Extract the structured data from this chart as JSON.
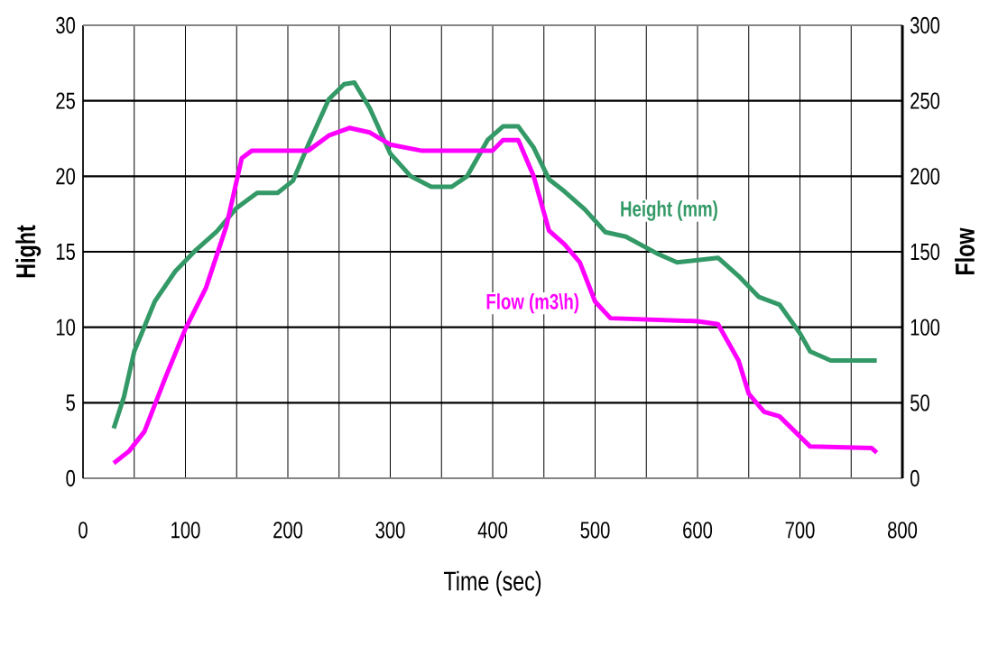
{
  "chart_data": {
    "type": "line",
    "xlabel": "Time (sec)",
    "ylabel": "Hight",
    "y2label": "Flow",
    "xlim": [
      0,
      800
    ],
    "xticks": [
      0,
      {
        "value": 50,
        "label": null
      },
      100,
      {
        "value": 150,
        "label": null
      },
      200,
      {
        "value": 250,
        "label": null
      },
      300,
      {
        "value": 350,
        "label": null
      },
      400,
      {
        "value": 450,
        "label": null
      },
      500,
      {
        "value": 550,
        "label": null
      },
      600,
      {
        "value": 650,
        "label": null
      },
      700,
      {
        "value": 750,
        "label": null
      },
      800
    ],
    "ylim": [
      0,
      30
    ],
    "yticks": [
      0,
      5,
      10,
      15,
      20,
      25,
      30
    ],
    "y2lim": [
      0,
      300
    ],
    "y2ticks": [
      0,
      50,
      100,
      150,
      200,
      250,
      300
    ],
    "grid": true,
    "marker": "none",
    "line_style": "solid",
    "series": [
      {
        "name": "Height (mm)",
        "color": "#339966",
        "x": [
          30,
          40,
          50,
          70,
          90,
          110,
          130,
          150,
          170,
          190,
          205,
          220,
          240,
          255,
          265,
          280,
          300,
          320,
          340,
          360,
          375,
          395,
          410,
          425,
          440,
          455,
          470,
          490,
          510,
          530,
          560,
          580,
          620,
          640,
          660,
          680,
          700,
          710,
          730,
          775
        ],
        "values": [
          3.3,
          5.4,
          8.4,
          11.7,
          13.7,
          15.1,
          16.3,
          17.9,
          18.9,
          18.9,
          19.7,
          22.1,
          25.1,
          26.1,
          26.2,
          24.5,
          21.5,
          20.0,
          19.3,
          19.3,
          20.0,
          22.4,
          23.3,
          23.3,
          21.9,
          19.8,
          19.0,
          17.8,
          16.3,
          16.0,
          14.9,
          14.3,
          14.6,
          13.4,
          12.0,
          11.5,
          9.6,
          8.4,
          7.8,
          7.8
        ]
      },
      {
        "name": "Flow (m3\\h)",
        "color": "#ff00ff",
        "axis": "y2",
        "x": [
          30,
          45,
          60,
          80,
          100,
          120,
          140,
          155,
          165,
          220,
          240,
          260,
          280,
          300,
          330,
          400,
          410,
          425,
          440,
          455,
          470,
          485,
          500,
          515,
          600,
          620,
          640,
          650,
          665,
          680,
          710,
          770,
          775
        ],
        "values": [
          10,
          18,
          31,
          66,
          99,
          126,
          167,
          212,
          217,
          217,
          227,
          232,
          229,
          221,
          217,
          217,
          224,
          224,
          200,
          164,
          155,
          143,
          117,
          106,
          104,
          102,
          78,
          56,
          44,
          41,
          21,
          20,
          17
        ]
      }
    ]
  }
}
